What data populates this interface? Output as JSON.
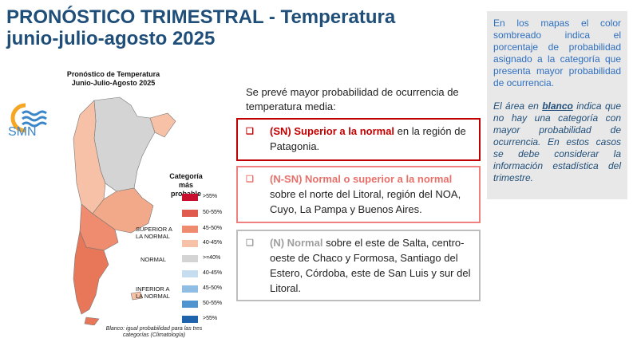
{
  "header": {
    "title_line1": "PRONÓSTICO TRIMESTRAL - Temperatura",
    "title_line2": "junio-julio-agosto 2025"
  },
  "info_box": {
    "paragraph1": "En los mapas el color sombreado indica el porcentaje de probabilidad asignado a la categoría que presenta mayor probabilidad de ocurrencia.",
    "note_prefix": "El área en ",
    "note_emphasis": "blanco",
    "note_suffix": " indica que no hay una categoría con mayor probabilidad de ocurrencia. En estos casos se debe considerar la información estadística del trimestre."
  },
  "logo": {
    "text": "SMN",
    "icon": "smn-logo-icon"
  },
  "map": {
    "title_line1": "Pronóstico de Temperatura",
    "title_line2": "Junio-Julio-Agosto 2025",
    "legend_title_line1": "Categoría más",
    "legend_title_line2": "probable",
    "group_above": "SUPERIOR A\nLA NORMAL",
    "group_normal": "NORMAL",
    "group_below": "INFERIOR A\nLA NORMAL",
    "legend": [
      {
        "label": ">55%",
        "color": "#c8102e"
      },
      {
        "label": "50-55%",
        "color": "#e05a4e"
      },
      {
        "label": "45-50%",
        "color": "#ef8c6f"
      },
      {
        "label": "40-45%",
        "color": "#f6c1a6"
      },
      {
        "label": ">=40%",
        "color": "#d4d4d4"
      },
      {
        "label": "40-45%",
        "color": "#c6dcef"
      },
      {
        "label": "45-50%",
        "color": "#8fbde3"
      },
      {
        "label": "50-55%",
        "color": "#4f93cf"
      },
      {
        "label": ">55%",
        "color": "#1f63ad"
      }
    ],
    "note_line1": "Blanco: igual probabilidad para las tres",
    "note_line2": "categorías (Climatología)"
  },
  "forecast": {
    "intro": "Se prevé mayor probabilidad de ocurrencia de temperatura media:",
    "items": [
      {
        "bullet": "❑",
        "category": "(SN) Superior a la normal",
        "text": " en la región de Patagonia."
      },
      {
        "bullet": "❑",
        "category": "(N-SN) Normal o superior a la normal",
        "text": " sobre el norte del Litoral, región del NOA, Cuyo, La Pampa y Buenos Aires."
      },
      {
        "bullet": "❑",
        "category": "(N) Normal",
        "text": " sobre el este de Salta, centro-oeste de Chaco y Formosa, Santiago del Estero, Córdoba, este de San Luis y sur del Litoral."
      }
    ]
  }
}
